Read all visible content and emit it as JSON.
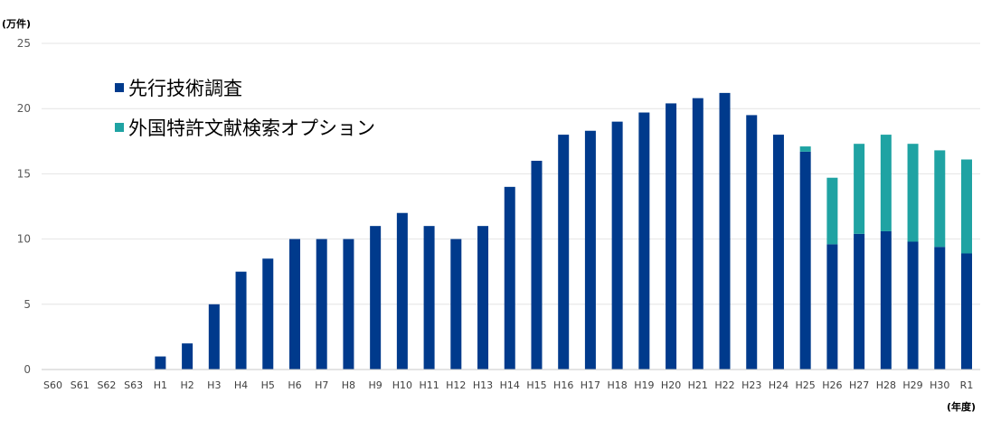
{
  "chart_data": {
    "type": "bar",
    "stacked": true,
    "y_unit_label": "(万件)",
    "x_unit_label": "(年度)",
    "ylim": [
      0,
      25
    ],
    "yticks": [
      0,
      5,
      10,
      15,
      20,
      25
    ],
    "grid": true,
    "legend_position": "top-left",
    "categories": [
      "S60",
      "S61",
      "S62",
      "S63",
      "H1",
      "H2",
      "H3",
      "H4",
      "H5",
      "H6",
      "H7",
      "H8",
      "H9",
      "H10",
      "H11",
      "H12",
      "H13",
      "H14",
      "H15",
      "H16",
      "H17",
      "H18",
      "H19",
      "H20",
      "H21",
      "H22",
      "H23",
      "H24",
      "H25",
      "H26",
      "H27",
      "H28",
      "H29",
      "H30",
      "R1"
    ],
    "series": [
      {
        "name": "先行技術調査",
        "color": "#003a8c",
        "values": [
          0,
          0,
          0,
          0,
          1,
          2,
          5,
          7.5,
          8.5,
          10,
          10,
          10,
          11,
          12,
          11,
          10,
          11,
          14,
          16,
          18,
          18.3,
          19,
          19.7,
          20.4,
          20.8,
          21.2,
          19.5,
          18,
          16.7,
          9.6,
          10.4,
          10.6,
          9.8,
          9.4,
          8.9
        ]
      },
      {
        "name": "外国特許文献検索オプション",
        "color": "#1fa3a3",
        "values": [
          0,
          0,
          0,
          0,
          0,
          0,
          0,
          0,
          0,
          0,
          0,
          0,
          0,
          0,
          0,
          0,
          0,
          0,
          0,
          0,
          0,
          0,
          0,
          0,
          0,
          0,
          0,
          0,
          0.4,
          5.1,
          6.9,
          7.4,
          7.5,
          7.4,
          7.2
        ]
      }
    ]
  }
}
